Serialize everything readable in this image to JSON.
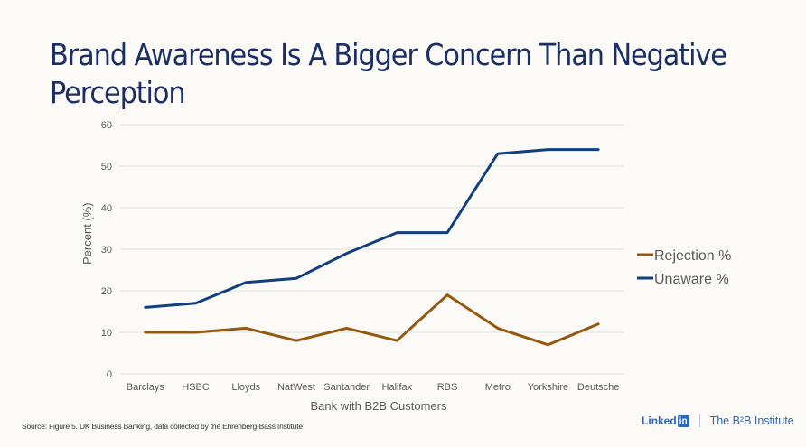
{
  "title": "Brand Awareness Is A Bigger Concern Than Negative Perception",
  "source": "Source: Figure 5. UK Business Banking, data collected by the Ehrenberg-Bass Institute",
  "footer": {
    "linkedin_word": "Linked",
    "linkedin_box": "in",
    "b2b_institute": "The B²B Institute"
  },
  "colors": {
    "rejection": "#94580f",
    "unaware": "#123f7e",
    "title": "#1b2f66",
    "grid": "#e2e1dc"
  },
  "chart_data": {
    "type": "line",
    "title": "Brand Awareness Is A Bigger Concern Than Negative Perception",
    "xlabel": "Bank with B2B Customers",
    "ylabel": "Percent (%)",
    "ylim": [
      0,
      60
    ],
    "yticks": [
      0,
      10,
      20,
      30,
      40,
      50,
      60
    ],
    "grid": true,
    "legend_position": "right",
    "categories": [
      "Barclays",
      "HSBC",
      "Lloyds",
      "NatWest",
      "Santander",
      "Halifax",
      "RBS",
      "Metro",
      "Yorkshire",
      "Deutsche"
    ],
    "series": [
      {
        "name": "Rejection %",
        "color": "#94580f",
        "values": [
          10,
          10,
          11,
          8,
          11,
          8,
          19,
          11,
          7,
          12
        ]
      },
      {
        "name": "Unaware %",
        "color": "#123f7e",
        "values": [
          16,
          17,
          22,
          23,
          29,
          34,
          34,
          53,
          54,
          54
        ]
      }
    ]
  }
}
